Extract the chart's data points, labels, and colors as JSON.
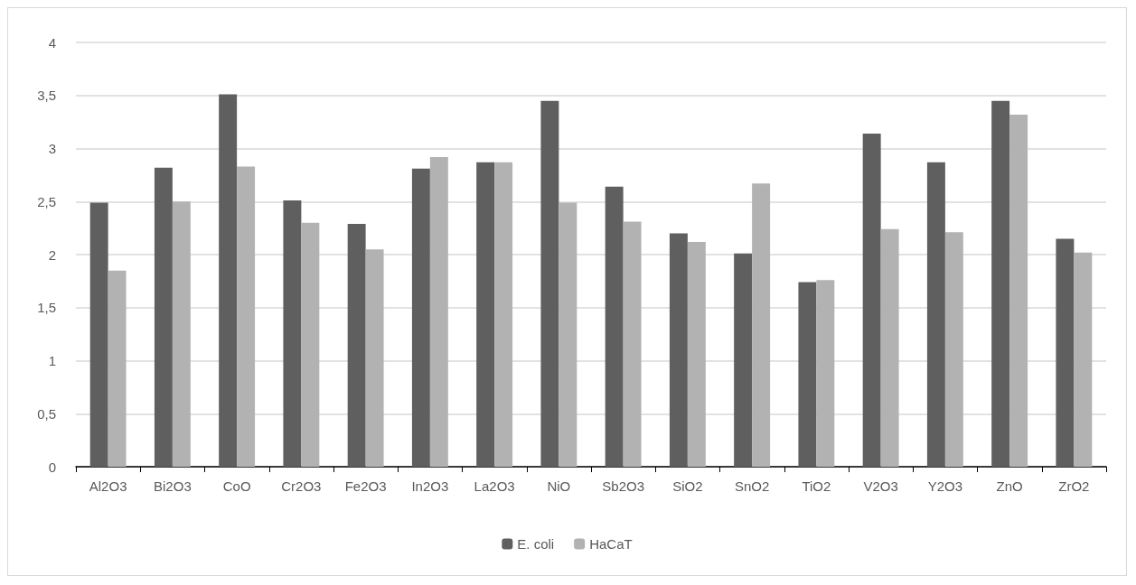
{
  "chart_data": {
    "type": "bar",
    "categories": [
      "Al2O3",
      "Bi2O3",
      "CoO",
      "Cr2O3",
      "Fe2O3",
      "In2O3",
      "La2O3",
      "NiO",
      "Sb2O3",
      "SiO2",
      "SnO2",
      "TiO2",
      "V2O3",
      "Y2O3",
      "ZnO",
      "ZrO2"
    ],
    "series": [
      {
        "name": "E. coli",
        "color": "#5f5f5f",
        "values": [
          2.49,
          2.82,
          3.51,
          2.51,
          2.29,
          2.81,
          2.87,
          3.45,
          2.64,
          2.2,
          2.01,
          1.74,
          3.14,
          2.87,
          3.45,
          2.15
        ]
      },
      {
        "name": "HaCaT",
        "color": "#b2b2b2",
        "values": [
          1.85,
          2.5,
          2.83,
          2.3,
          2.05,
          2.92,
          2.87,
          2.49,
          2.31,
          2.12,
          2.67,
          1.76,
          2.24,
          2.21,
          3.32,
          2.02
        ]
      }
    ],
    "ylim": [
      0,
      4
    ],
    "yticks": [
      0,
      {
        "value": 0.5,
        "label": "0,5"
      },
      1,
      {
        "value": 1.5,
        "label": "1,5"
      },
      2,
      {
        "value": 2.5,
        "label": "2,5"
      },
      3,
      {
        "value": 3.5,
        "label": "3,5"
      },
      4
    ],
    "grid": "y",
    "legend": "bottom"
  }
}
